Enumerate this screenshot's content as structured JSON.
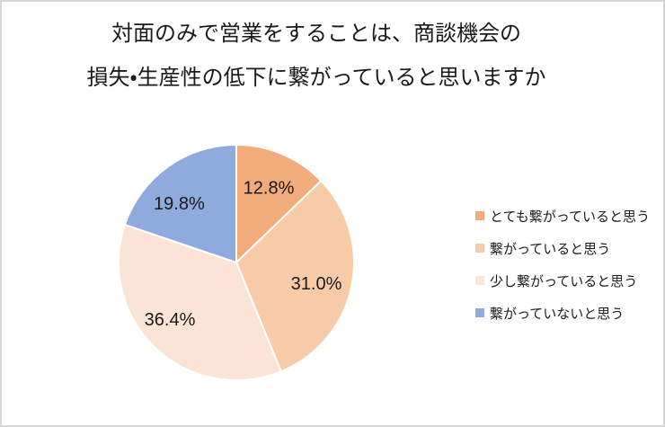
{
  "title": {
    "line1": "対面のみで営業をすることは、商談機会の",
    "line2": "損失・生産性の低下に繋がっていると思いますか"
  },
  "chart_data": {
    "type": "pie",
    "title": "対面のみで営業をすることは、商談機会の損失・生産性の低下に繋がっていると思いますか",
    "categories": [
      "とても繋がっていると思う",
      "繋がっていると思う",
      "少し繋がっていると思う",
      "繋がっていないと思う"
    ],
    "values": [
      12.8,
      31.0,
      36.4,
      19.8
    ],
    "data_labels": [
      "12.8%",
      "31.0%",
      "36.4%",
      "19.8%"
    ],
    "unit": "%",
    "colors": [
      "#F2AB7A",
      "#F7CAA8",
      "#FBE4D5",
      "#8FAADC"
    ],
    "start_angle_deg": 0,
    "direction": "clockwise",
    "legend_position": "right",
    "slice_border_color": "#FFFFFF",
    "label_color": "#1A1A1A"
  },
  "frame": {
    "border_color": "#D7D7D7",
    "background_color": "#FFFFFF"
  }
}
